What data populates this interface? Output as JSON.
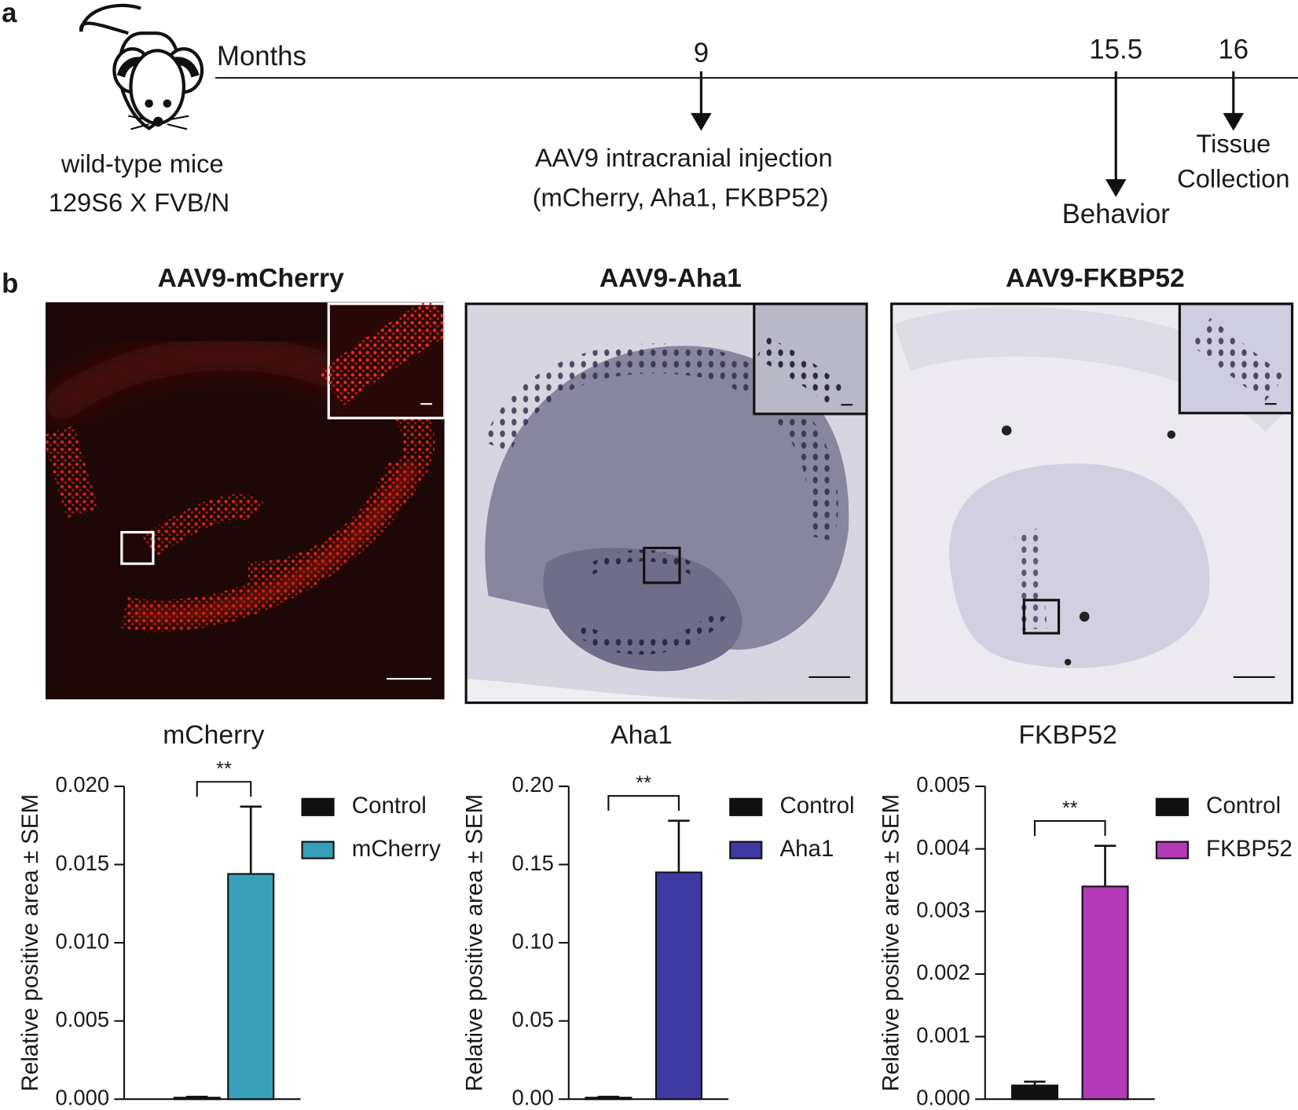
{
  "panel_labels": [
    "a",
    "b"
  ],
  "timeline": {
    "axis_label": "Months",
    "origin": [
      "wild-type mice",
      "129S6 X FVB/N"
    ],
    "events": [
      {
        "month": "9",
        "label": [
          "AAV9 intracranial injection",
          "(mCherry, Aha1, FKBP52)"
        ]
      },
      {
        "month": "15.5",
        "label": [
          "Behavior"
        ]
      },
      {
        "month": "16",
        "label": [
          "Tissue",
          "Collection"
        ]
      }
    ]
  },
  "images": [
    {
      "title": "AAV9-mCherry"
    },
    {
      "title": "AAV9-Aha1"
    },
    {
      "title": "AAV9-FKBP52"
    }
  ],
  "chart_data": [
    {
      "type": "bar",
      "title": "mCherry",
      "y_label": "Relative positive area ± SEM",
      "categories": [
        "Control",
        "mCherry"
      ],
      "colors": [
        "#111111",
        "#37a0b8"
      ],
      "values": [
        0.0001,
        0.0144
      ],
      "errors": [
        5e-05,
        0.0043
      ],
      "significance": "**",
      "ylim": [
        0,
        0.02
      ],
      "yticks": [
        {
          "value": 0,
          "label": "0.000"
        },
        {
          "value": 0.005,
          "label": "0.005"
        },
        {
          "value": 0.01,
          "label": "0.010"
        },
        {
          "value": 0.015,
          "label": "0.015"
        },
        {
          "value": 0.02,
          "label": "0.020"
        }
      ]
    },
    {
      "type": "bar",
      "title": "Aha1",
      "y_label": "Relative positive area ± SEM",
      "categories": [
        "Control",
        "Aha1"
      ],
      "colors": [
        "#111111",
        "#3d3aa4"
      ],
      "values": [
        0.001,
        0.145
      ],
      "errors": [
        0.0005,
        0.033
      ],
      "significance": "**",
      "ylim": [
        0,
        0.2
      ],
      "yticks": [
        {
          "value": 0,
          "label": "0.00"
        },
        {
          "value": 0.05,
          "label": "0.05"
        },
        {
          "value": 0.1,
          "label": "0.10"
        },
        {
          "value": 0.15,
          "label": "0.15"
        },
        {
          "value": 0.2,
          "label": "0.20"
        }
      ]
    },
    {
      "type": "bar",
      "title": "FKBP52",
      "y_label": "Relative positive area ± SEM",
      "categories": [
        "Control",
        "FKBP52"
      ],
      "colors": [
        "#111111",
        "#b43ab8"
      ],
      "values": [
        0.00022,
        0.0034
      ],
      "errors": [
        6e-05,
        0.00065
      ],
      "significance": "**",
      "ylim": [
        0,
        0.005
      ],
      "yticks": [
        {
          "value": 0,
          "label": "0.000"
        },
        {
          "value": 0.001,
          "label": "0.001"
        },
        {
          "value": 0.002,
          "label": "0.002"
        },
        {
          "value": 0.003,
          "label": "0.003"
        },
        {
          "value": 0.004,
          "label": "0.004"
        },
        {
          "value": 0.005,
          "label": "0.005"
        }
      ]
    }
  ]
}
